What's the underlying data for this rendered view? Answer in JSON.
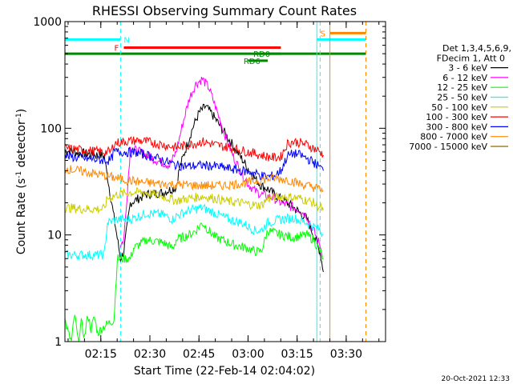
{
  "chart_data": {
    "type": "line",
    "title": "RHESSI Observing Summary Count Rates",
    "xlabel": "Start Time (22-Feb-14 02:04:02)",
    "ylabel": "Count Rate (s⁻¹ detector⁻¹)",
    "ylabel_parts": {
      "main": "Count Rate (s",
      "exp1": "-1",
      "mid": " detector",
      "exp2": "-1",
      "end": ")"
    },
    "yscale": "log",
    "ylim": [
      1,
      1000
    ],
    "xlim_minutes": [
      0,
      98
    ],
    "x_ticks": [
      {
        "label": "02:15",
        "t": 10.97
      },
      {
        "label": "02:30",
        "t": 25.97
      },
      {
        "label": "02:45",
        "t": 40.97
      },
      {
        "label": "03:00",
        "t": 55.97
      },
      {
        "label": "03:15",
        "t": 70.97
      },
      {
        "label": "03:30",
        "t": 85.97
      }
    ],
    "y_ticks": [
      {
        "label": "1",
        "v": 1
      },
      {
        "label": "10",
        "v": 10
      },
      {
        "label": "100",
        "v": 100
      },
      {
        "label": "1000",
        "v": 1000
      }
    ],
    "legend": {
      "header": [
        "Det 1,3,4,5,6,9,",
        "FDecim 1, Att 0"
      ],
      "placement": "right"
    },
    "series": [
      {
        "name": "3 - 6 keV",
        "color": "#000000",
        "points": [
          [
            0,
            62
          ],
          [
            6,
            58
          ],
          [
            12,
            55
          ],
          [
            17,
            6
          ],
          [
            18,
            7
          ],
          [
            20,
            20
          ],
          [
            25,
            24
          ],
          [
            30,
            25
          ],
          [
            34,
            28
          ],
          [
            35,
            42
          ],
          [
            37,
            65
          ],
          [
            39,
            100
          ],
          [
            41,
            140
          ],
          [
            43,
            160
          ],
          [
            45,
            135
          ],
          [
            47,
            110
          ],
          [
            50,
            80
          ],
          [
            53,
            58
          ],
          [
            56,
            42
          ],
          [
            58,
            34
          ],
          [
            60,
            29
          ],
          [
            62,
            27
          ],
          [
            64,
            24
          ],
          [
            66,
            22
          ],
          [
            68,
            20
          ],
          [
            70,
            18
          ],
          [
            72,
            16
          ],
          [
            74,
            14
          ],
          [
            76,
            10
          ],
          [
            78,
            7
          ],
          [
            79,
            4.5
          ]
        ]
      },
      {
        "name": "6 - 12 keV",
        "color": "#ff00ff",
        "points": [
          [
            17,
            8
          ],
          [
            18,
            9
          ],
          [
            20,
            65
          ],
          [
            24,
            58
          ],
          [
            28,
            50
          ],
          [
            32,
            45
          ],
          [
            34,
            60
          ],
          [
            36,
            110
          ],
          [
            38,
            190
          ],
          [
            40,
            260
          ],
          [
            42,
            290
          ],
          [
            44,
            240
          ],
          [
            46,
            160
          ],
          [
            48,
            105
          ],
          [
            50,
            70
          ],
          [
            52,
            50
          ],
          [
            54,
            38
          ],
          [
            56,
            30
          ],
          [
            58,
            26
          ],
          [
            60,
            24
          ],
          [
            62,
            23
          ],
          [
            64,
            22
          ],
          [
            66,
            20
          ],
          [
            68,
            19
          ],
          [
            70,
            18
          ],
          [
            72,
            17
          ],
          [
            74,
            15
          ],
          [
            76,
            11
          ],
          [
            78,
            8
          ],
          [
            79,
            6
          ]
        ]
      },
      {
        "name": "12 - 25 keV",
        "color": "#00ff00",
        "points": [
          [
            0,
            1.6
          ],
          [
            1,
            1.2
          ],
          [
            2,
            1.0
          ],
          [
            3,
            1.8
          ],
          [
            4,
            1.0
          ],
          [
            5,
            1.5
          ],
          [
            6,
            1.1
          ],
          [
            7,
            1.8
          ],
          [
            8,
            1.3
          ],
          [
            9,
            1.7
          ],
          [
            10,
            1.2
          ],
          [
            12,
            1.4
          ],
          [
            15,
            1.6
          ],
          [
            16,
            6
          ],
          [
            18,
            6
          ],
          [
            20,
            6
          ],
          [
            21,
            7.5
          ],
          [
            25,
            9
          ],
          [
            30,
            8.5
          ],
          [
            33,
            7.5
          ],
          [
            34,
            9
          ],
          [
            38,
            10
          ],
          [
            40,
            11
          ],
          [
            42,
            13
          ],
          [
            44,
            11
          ],
          [
            46,
            9.5
          ],
          [
            48,
            9
          ],
          [
            50,
            8.5
          ],
          [
            52,
            8
          ],
          [
            56,
            7.5
          ],
          [
            58,
            7
          ],
          [
            60,
            7
          ],
          [
            62,
            11
          ],
          [
            66,
            10
          ],
          [
            70,
            9.5
          ],
          [
            74,
            10
          ],
          [
            76,
            9
          ],
          [
            78,
            7
          ],
          [
            79,
            6
          ]
        ]
      },
      {
        "name": "25 - 50 keV",
        "color": "#00ffff",
        "points": [
          [
            0,
            6.5
          ],
          [
            6,
            6.5
          ],
          [
            10,
            6.5
          ],
          [
            12,
            6.5
          ],
          [
            13,
            13
          ],
          [
            16,
            14
          ],
          [
            20,
            14
          ],
          [
            25,
            16
          ],
          [
            30,
            15.5
          ],
          [
            33,
            14
          ],
          [
            34,
            15
          ],
          [
            38,
            17
          ],
          [
            42,
            18
          ],
          [
            46,
            16
          ],
          [
            50,
            14
          ],
          [
            54,
            13
          ],
          [
            56,
            12
          ],
          [
            58,
            11
          ],
          [
            60,
            11
          ],
          [
            62,
            13
          ],
          [
            66,
            14
          ],
          [
            70,
            14.5
          ],
          [
            72,
            13.5
          ],
          [
            74,
            13
          ],
          [
            76,
            12
          ],
          [
            78,
            11
          ],
          [
            79,
            10
          ]
        ]
      },
      {
        "name": "50 - 100 keV",
        "color": "#cccc00",
        "points": [
          [
            0,
            18
          ],
          [
            6,
            17.5
          ],
          [
            12,
            17.5
          ],
          [
            13,
            22
          ],
          [
            16,
            24
          ],
          [
            20,
            25
          ],
          [
            25,
            25
          ],
          [
            30,
            23
          ],
          [
            34,
            21
          ],
          [
            38,
            22
          ],
          [
            42,
            23
          ],
          [
            46,
            22
          ],
          [
            50,
            20.5
          ],
          [
            54,
            20
          ],
          [
            56,
            19.5
          ],
          [
            58,
            19
          ],
          [
            60,
            19
          ],
          [
            62,
            22
          ],
          [
            66,
            23
          ],
          [
            70,
            22.5
          ],
          [
            72,
            22
          ],
          [
            74,
            21
          ],
          [
            76,
            20
          ],
          [
            78,
            18
          ],
          [
            79,
            17
          ]
        ]
      },
      {
        "name": "100 - 300 keV",
        "color": "#ff0000",
        "points": [
          [
            0,
            65
          ],
          [
            6,
            62
          ],
          [
            12,
            60
          ],
          [
            14,
            60
          ],
          [
            15,
            72
          ],
          [
            18,
            75
          ],
          [
            22,
            77
          ],
          [
            26,
            74
          ],
          [
            30,
            70
          ],
          [
            32,
            68
          ],
          [
            34,
            66
          ],
          [
            38,
            70
          ],
          [
            42,
            75
          ],
          [
            46,
            70
          ],
          [
            50,
            66
          ],
          [
            54,
            62
          ],
          [
            56,
            60
          ],
          [
            58,
            58
          ],
          [
            60,
            56
          ],
          [
            62,
            54
          ],
          [
            64,
            53
          ],
          [
            66,
            54
          ],
          [
            68,
            72
          ],
          [
            70,
            75
          ],
          [
            72,
            73
          ],
          [
            74,
            70
          ],
          [
            76,
            65
          ],
          [
            78,
            60
          ],
          [
            79,
            56
          ]
        ]
      },
      {
        "name": "300 - 800 keV",
        "color": "#0000ff",
        "points": [
          [
            0,
            55
          ],
          [
            6,
            52
          ],
          [
            12,
            50
          ],
          [
            14,
            50
          ],
          [
            15,
            60
          ],
          [
            18,
            60
          ],
          [
            22,
            59
          ],
          [
            26,
            55
          ],
          [
            30,
            50
          ],
          [
            34,
            45
          ],
          [
            38,
            44
          ],
          [
            42,
            45
          ],
          [
            46,
            44
          ],
          [
            50,
            42
          ],
          [
            54,
            40
          ],
          [
            56,
            39
          ],
          [
            58,
            38
          ],
          [
            60,
            36
          ],
          [
            62,
            35
          ],
          [
            64,
            36
          ],
          [
            66,
            40
          ],
          [
            68,
            55
          ],
          [
            70,
            58
          ],
          [
            72,
            56
          ],
          [
            74,
            52
          ],
          [
            76,
            48
          ],
          [
            78,
            43
          ],
          [
            79,
            40
          ]
        ]
      },
      {
        "name": "800 - 7000 keV",
        "color": "#ff8800",
        "points": [
          [
            0,
            42
          ],
          [
            6,
            39
          ],
          [
            12,
            36
          ],
          [
            18,
            33
          ],
          [
            24,
            31
          ],
          [
            30,
            30
          ],
          [
            36,
            29.5
          ],
          [
            42,
            29
          ],
          [
            48,
            29
          ],
          [
            52,
            30
          ],
          [
            56,
            31
          ],
          [
            60,
            33
          ],
          [
            64,
            34
          ],
          [
            68,
            33
          ],
          [
            72,
            30
          ],
          [
            76,
            28
          ],
          [
            78,
            27
          ],
          [
            79,
            26
          ]
        ]
      },
      {
        "name": "7000 - 15000 keV",
        "color": "#996600",
        "points": []
      }
    ],
    "bars": [
      {
        "label": "N",
        "color": "#00ffff",
        "t_start": 0,
        "t_end": 17,
        "level": 680
      },
      {
        "label": "F",
        "color": "#ff0000",
        "t_start": 18,
        "t_end": 66,
        "level": 570
      },
      {
        "label": "",
        "color": "#008800",
        "t_start": 0,
        "t_end": 92,
        "level": 500
      },
      {
        "label": "RD0",
        "color": "#008800",
        "t_start": 58,
        "t_end": 66,
        "level": 500
      },
      {
        "label": "RD6",
        "color": "#008800",
        "t_start": 56,
        "t_end": 62,
        "level": 430
      },
      {
        "label": "S",
        "color": "#ff8800",
        "t_start": 81,
        "t_end": 92,
        "level": 780
      },
      {
        "label": "",
        "color": "#00ffff",
        "t_start": 77,
        "t_end": 92,
        "level": 680
      }
    ],
    "vlines": [
      {
        "t": 17,
        "color": "#00ffff",
        "style": "dash"
      },
      {
        "t": 77,
        "color": "#00ffff",
        "style": "solid"
      },
      {
        "t": 78,
        "color": "#00ffff",
        "style": "dash"
      },
      {
        "t": 81,
        "color": "#ff8800",
        "style": "solid"
      },
      {
        "t": 92,
        "color": "#ff8800",
        "style": "dash"
      }
    ]
  },
  "footer": {
    "date_stamp": "20-Oct-2021 12:33"
  }
}
